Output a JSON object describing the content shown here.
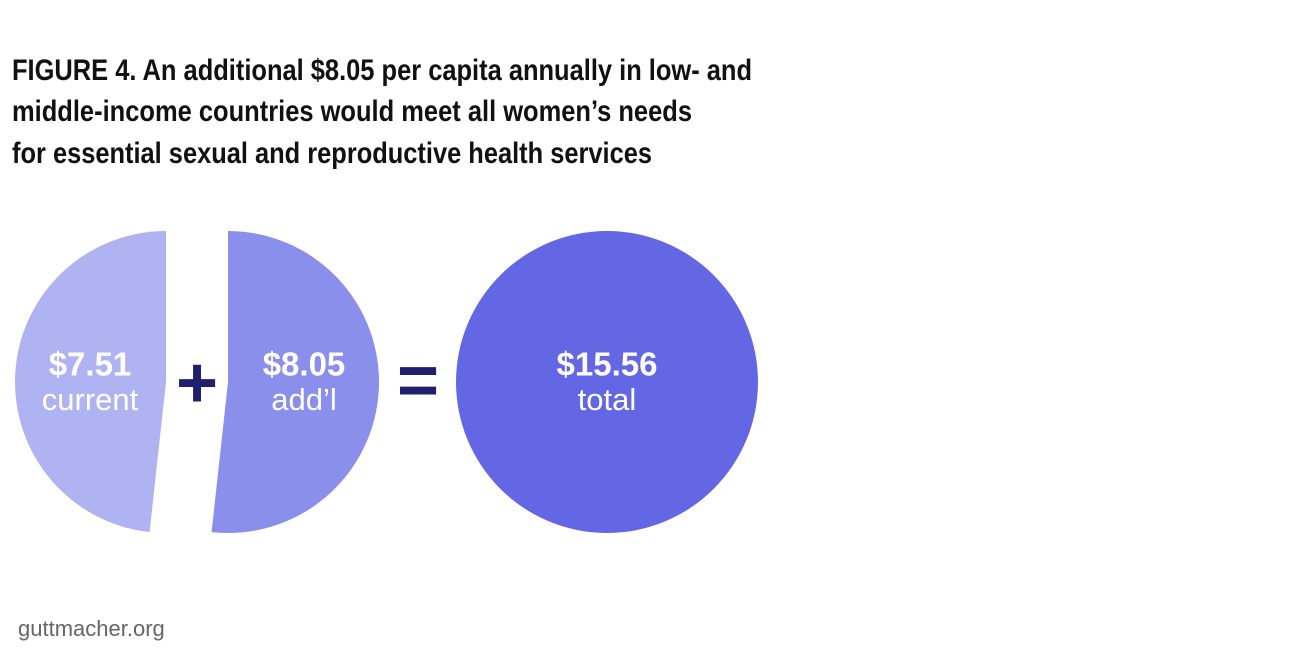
{
  "chart_data": {
    "type": "pie",
    "title": [
      "FIGURE 4. An additional $8.05 per capita annually in low- and",
      "middle-income countries would meet all women’s needs",
      "for essential sexual and reproductive health services"
    ],
    "categories": [
      "current",
      "add’l"
    ],
    "values": [
      7.51,
      8.05
    ],
    "value_labels": [
      "$7.51",
      "$8.05"
    ],
    "colors": [
      "#b0b3f2",
      "#8a8fec"
    ],
    "operators": [
      "+",
      "="
    ],
    "operator_color": "#1f1f6e",
    "total": {
      "name": "total",
      "value": 15.56,
      "label": "$15.56",
      "color": "#6467e4"
    }
  },
  "source": "guttmacher.org"
}
